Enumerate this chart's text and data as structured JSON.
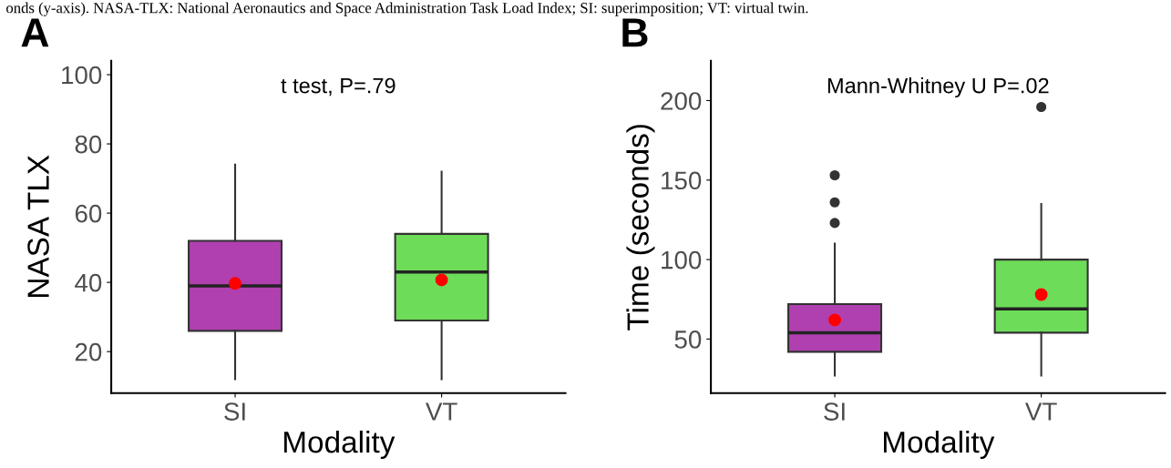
{
  "chart_data": [
    {
      "type": "box",
      "title": "A",
      "subtitle": "t test, P=.79",
      "xlabel": "Modality",
      "ylabel": "NASA TLX",
      "categories": [
        "SI",
        "VT"
      ],
      "colors": [
        "#b040b0",
        "#6ddc58"
      ],
      "boxes": [
        {
          "low": 12,
          "q1": 26,
          "median": 39,
          "q3": 52,
          "high": 74,
          "mean": 39.7
        },
        {
          "low": 12,
          "q1": 29,
          "median": 43,
          "q3": 54,
          "high": 72,
          "mean": 40.7
        }
      ],
      "ylim": [
        8,
        104
      ],
      "yticks": [
        20,
        40,
        60,
        80,
        100
      ],
      "grid": false,
      "legend": false,
      "annotations": [
        "onds (y-axis). NASA-TLX: National Aeronautics and Space Administration Task Load Index; SI: superimposition; VT: virtual twin."
      ]
    },
    {
      "type": "box",
      "title": "B",
      "subtitle": "Mann-Whitney U P=.02",
      "xlabel": "Modality",
      "ylabel": "Time (seconds)",
      "categories": [
        "SI",
        "VT"
      ],
      "colors": [
        "#b040b0",
        "#6ddc58"
      ],
      "boxes": [
        {
          "low": 27,
          "q1": 42,
          "median": 54,
          "q3": 72,
          "high": 110,
          "mean": 62,
          "outliers": [
            123,
            136,
            153
          ]
        },
        {
          "low": 27,
          "q1": 54,
          "median": 69,
          "q3": 100,
          "high": 135,
          "mean": 78,
          "outliers": [
            196
          ]
        }
      ],
      "ylim": [
        16,
        225
      ],
      "yticks": [
        50,
        100,
        150,
        200
      ],
      "grid": false,
      "legend": false
    }
  ]
}
